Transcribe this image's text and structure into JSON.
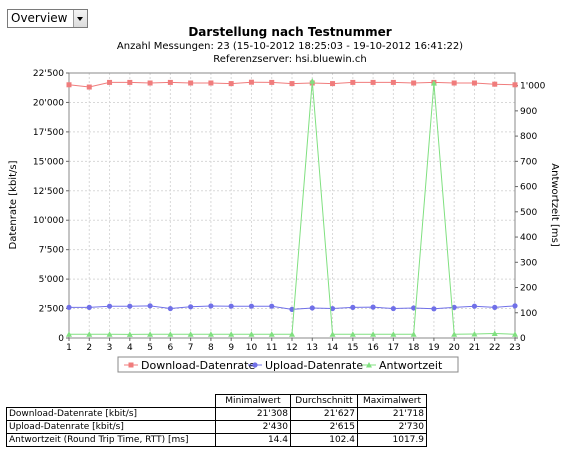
{
  "view_select": {
    "value": "Overview"
  },
  "chart_data": {
    "type": "line",
    "title": "Darstellung nach Testnummer",
    "subtitle_lines": [
      "Anzahl Messungen: 23 (15-10-2012 18:25:03 - 19-10-2012 16:41:22)",
      "Referenzserver: hsi.bluewin.ch"
    ],
    "xlabel": "",
    "ylabel_left": "Datenrate [kbit/s]",
    "ylabel_right": "Antwortzeit [ms]",
    "x": [
      1,
      2,
      3,
      4,
      5,
      6,
      7,
      8,
      9,
      10,
      11,
      12,
      13,
      14,
      15,
      16,
      17,
      18,
      19,
      20,
      21,
      22,
      23
    ],
    "x_tick_labels": [
      "1",
      "2",
      "3",
      "4",
      "5",
      "6",
      "7",
      "8",
      "9",
      "10",
      "11",
      "12",
      "13",
      "14",
      "15",
      "16",
      "17",
      "18",
      "19",
      "20",
      "21",
      "22",
      "23"
    ],
    "ylim_left": [
      0,
      22500
    ],
    "y_ticks_left": [
      0,
      2500,
      5000,
      7500,
      10000,
      12500,
      15000,
      17500,
      20000,
      22500
    ],
    "y_tick_labels_left": [
      "0",
      "2'500",
      "5'000",
      "7'500",
      "10'000",
      "12'500",
      "15'000",
      "17'500",
      "20'000",
      "22'500"
    ],
    "ylim_right": [
      0,
      1050
    ],
    "y_ticks_right": [
      0,
      100,
      200,
      300,
      400,
      500,
      600,
      700,
      800,
      900,
      1000
    ],
    "y_tick_labels_right": [
      "0",
      "100",
      "200",
      "300",
      "400",
      "500",
      "600",
      "700",
      "800",
      "900",
      "1'000"
    ],
    "grid": true,
    "legend_position": "bottom",
    "series": [
      {
        "name": "Download-Datenrate",
        "axis": "left",
        "color": "#f07c7c",
        "marker": "square",
        "values": [
          21500,
          21308,
          21700,
          21700,
          21650,
          21700,
          21650,
          21650,
          21600,
          21718,
          21700,
          21600,
          21650,
          21600,
          21700,
          21700,
          21700,
          21650,
          21700,
          21650,
          21650,
          21550,
          21500
        ]
      },
      {
        "name": "Upload-Datenrate",
        "axis": "left",
        "color": "#7070e8",
        "marker": "circle",
        "values": [
          2600,
          2600,
          2700,
          2700,
          2730,
          2500,
          2650,
          2720,
          2700,
          2700,
          2700,
          2430,
          2550,
          2500,
          2600,
          2620,
          2500,
          2550,
          2480,
          2600,
          2700,
          2600,
          2730
        ]
      },
      {
        "name": "Antwortzeit",
        "axis": "right",
        "color": "#80e080",
        "marker": "triangle",
        "values": [
          15,
          15,
          15,
          14.4,
          15,
          15,
          15,
          15,
          15,
          15,
          15,
          15,
          1017.9,
          15,
          15,
          15,
          15,
          15,
          1010,
          15,
          16,
          18,
          15
        ]
      }
    ]
  },
  "stats_table": {
    "headers": [
      "Minimalwert",
      "Durchschnitt",
      "Maximalwert"
    ],
    "rows": [
      {
        "label": "Download-Datenrate [kbit/s]",
        "values": [
          "21'308",
          "21'627",
          "21'718"
        ]
      },
      {
        "label": "Upload-Datenrate [kbit/s]",
        "values": [
          "2'430",
          "2'615",
          "2'730"
        ]
      },
      {
        "label": "Antwortzeit (Round Trip Time, RTT) [ms]",
        "values": [
          "14.4",
          "102.4",
          "1017.9"
        ]
      }
    ]
  }
}
